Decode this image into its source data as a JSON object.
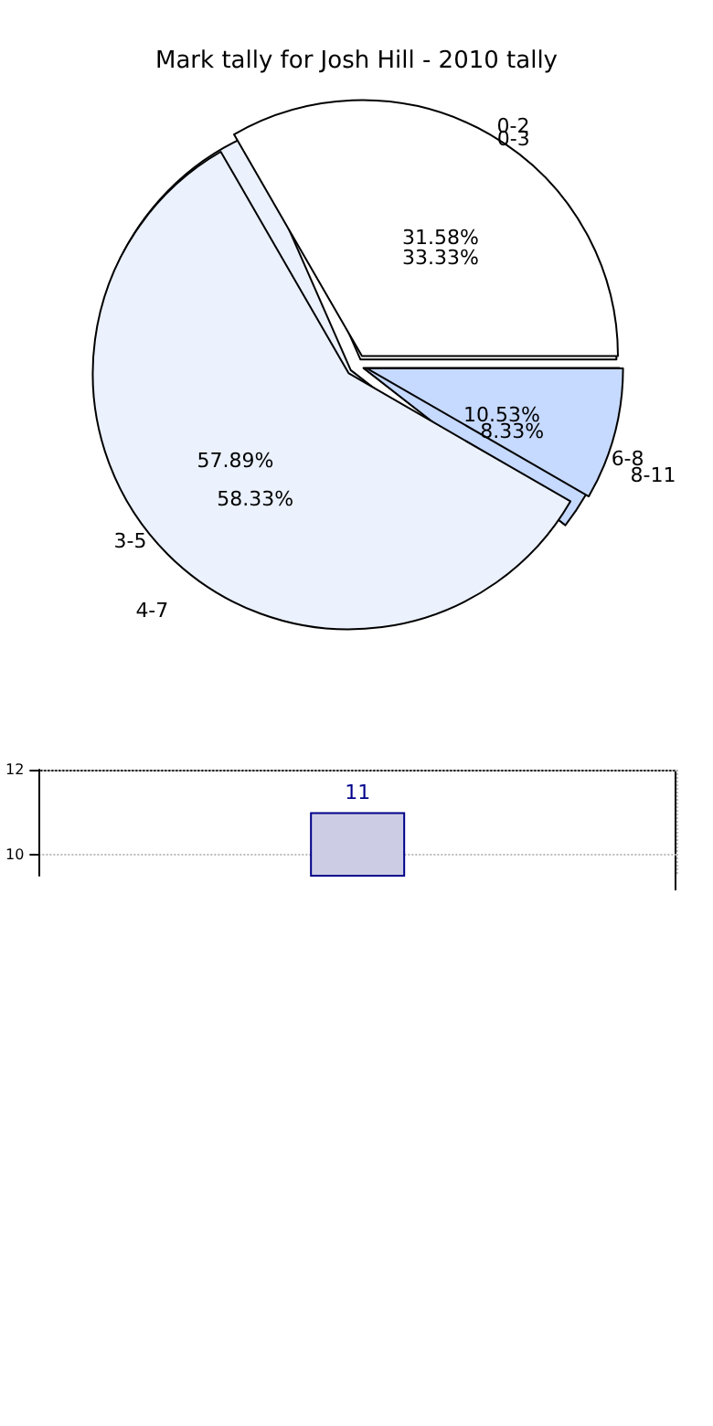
{
  "chart_data": [
    {
      "type": "pie",
      "title": "Mark tally for Josh Hill - 2010 tally",
      "legend": false,
      "categories": [
        "0-2",
        "3-5",
        "6-8"
      ],
      "values": [
        31.58,
        57.89,
        10.53
      ],
      "value_labels": [
        "31.58%",
        "57.89%",
        "10.53%"
      ],
      "colors": [
        "#ffffff",
        "#ebf1fd",
        "#c6d9fe"
      ]
    },
    {
      "type": "pie",
      "legend": false,
      "categories": [
        "0-3",
        "4-7",
        "8-11"
      ],
      "values": [
        33.33,
        58.33,
        8.33
      ],
      "value_labels": [
        "33.33%",
        "58.33%",
        "8.33%"
      ],
      "colors": [
        "#ffffff",
        "#ebf1fd",
        "#c6d9fe"
      ]
    },
    {
      "type": "bar",
      "categories": [
        null
      ],
      "values": [
        11
      ],
      "color": "#cccce5",
      "ylim": [
        9.5,
        12
      ],
      "yticks": [
        10,
        12
      ],
      "grid": true,
      "data_labels": true
    }
  ]
}
